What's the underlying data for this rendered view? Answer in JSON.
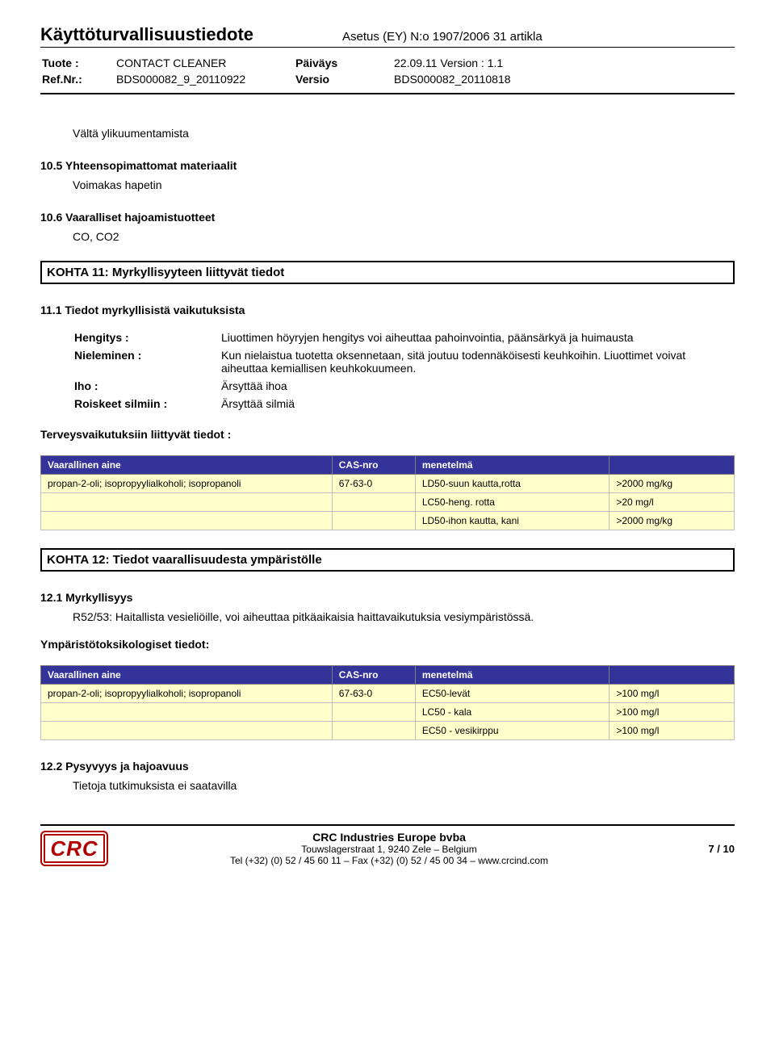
{
  "header": {
    "doc_title": "Käyttöturvallisuustiedote",
    "regulation": "Asetus (EY) N:o 1907/2006 31 artikla",
    "meta": {
      "tuote_label": "Tuote :",
      "tuote_value": "CONTACT CLEANER",
      "ref_label": "Ref.Nr.:",
      "ref_value": "BDS000082_9_20110922",
      "paivays_label": "Päiväys",
      "paivays_value": "22.09.11 Version : 1.1",
      "versio_label": "Versio",
      "versio_value": "BDS000082_20110818"
    }
  },
  "body": {
    "avoid": "Vältä ylikuumentamista",
    "s10_5_title": "10.5 Yhteensopimattomat materiaalit",
    "s10_5_body": "Voimakas hapetin",
    "s10_6_title": "10.6 Vaaralliset hajoamistuotteet",
    "s10_6_body": "CO, CO2",
    "k11_bar": "KOHTA 11: Myrkyllisyyteen liittyvät tiedot",
    "s11_1_title": "11.1 Tiedot myrkyllisistä vaikutuksista",
    "defs": {
      "hengitys_label": "Hengitys :",
      "hengitys_val": "Liuottimen höyryjen hengitys voi aiheuttaa pahoinvointia, päänsärkyä ja huimausta",
      "nieleminen_label": "Nieleminen :",
      "nieleminen_val": "Kun nielaistua tuotetta oksennetaan, sitä joutuu todennäköisesti keuhkoihin. Liuottimet voivat aiheuttaa kemiallisen keuhkokuumeen.",
      "iho_label": "Iho :",
      "iho_val": "Ärsyttää ihoa",
      "roiskeet_label": "Roiskeet silmiin :",
      "roiskeet_val": "Ärsyttää silmiä"
    },
    "terveys_title": "Terveysvaikutuksiin liittyvät tiedot :",
    "table1": {
      "header_bg": "#333399",
      "row_bg": "#ffffcc",
      "cols": [
        "Vaarallinen aine",
        "CAS-nro",
        "menetelmä",
        ""
      ],
      "rows": [
        [
          "propan-2-oli; isopropyylialkoholi; isopropanoli",
          "67-63-0",
          "LD50-suun kautta,rotta",
          ">2000 mg/kg"
        ],
        [
          "",
          "",
          "LC50-heng. rotta",
          ">20 mg/l"
        ],
        [
          "",
          "",
          "LD50-ihon kautta, kani",
          ">2000 mg/kg"
        ]
      ]
    },
    "k12_bar": "KOHTA 12: Tiedot vaarallisuudesta ympäristölle",
    "s12_1_title": "12.1 Myrkyllisyys",
    "s12_1_body": "R52/53: Haitallista vesieliöille, voi aiheuttaa pitkäaikaisia haittavaikutuksia vesiympäristössä.",
    "ymparisto_title": "Ympäristötoksikologiset tiedot:",
    "table2": {
      "header_bg": "#333399",
      "row_bg": "#ffffcc",
      "cols": [
        "Vaarallinen aine",
        "CAS-nro",
        "menetelmä",
        ""
      ],
      "rows": [
        [
          "propan-2-oli; isopropyylialkoholi; isopropanoli",
          "67-63-0",
          "EC50-levät",
          ">100 mg/l"
        ],
        [
          "",
          "",
          "LC50 - kala",
          ">100 mg/l"
        ],
        [
          "",
          "",
          "EC50 - vesikirppu",
          ">100 mg/l"
        ]
      ]
    },
    "s12_2_title": "12.2 Pysyvyys ja hajoavuus",
    "s12_2_body": "Tietoja tutkimuksista ei saatavilla"
  },
  "footer": {
    "logo_text": "CRC",
    "company": "CRC Industries Europe bvba",
    "addr": "Touwslagerstraat 1,  9240 Zele – Belgium",
    "contact": "Tel (+32) (0) 52 / 45 60 11 – Fax (+32) (0) 52 / 45 00 34 –  www.crcind.com",
    "page": "7 / 10"
  }
}
